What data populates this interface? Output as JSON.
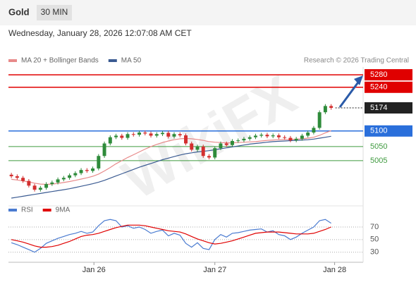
{
  "chart_data": {
    "type": "candlestick",
    "title": "Gold",
    "subtitle": "30 MIN",
    "date": "Wednesday, January 28, 2026 12:07:08 AM CET",
    "credit": "Research © 2026 Trading Central",
    "watermark": "WikiFX",
    "xlim": [
      -0.5,
      60.5
    ],
    "xticks": [
      {
        "value": 14.2,
        "label": "Jan 26"
      },
      {
        "value": 35,
        "label": "Jan 27"
      },
      {
        "value": 55.6,
        "label": "Jan 28"
      }
    ],
    "ylim": [
      4876,
      5305
    ],
    "up_color": "#2e8b3a",
    "down_color": "#d32f2f",
    "open": [
      4960,
      4955,
      4950,
      4940,
      4925,
      4912,
      4918,
      4930,
      4935,
      4945,
      4950,
      4958,
      4965,
      4975,
      4972,
      4980,
      5020,
      5060,
      5080,
      5085,
      5078,
      5090,
      5088,
      5095,
      5092,
      5085,
      5090,
      5094,
      5082,
      5090,
      5086,
      5060,
      5040,
      5050,
      5020,
      5015,
      5045,
      5060,
      5055,
      5068,
      5070,
      5075,
      5080,
      5085,
      5088,
      5083,
      5086,
      5080,
      5078,
      5070,
      5075,
      5085,
      5095,
      5110,
      5160,
      5180
    ],
    "high": [
      4966,
      4961,
      4956,
      4946,
      4931,
      4924,
      4936,
      4941,
      4951,
      4956,
      4964,
      4971,
      4981,
      4981,
      4986,
      5026,
      5066,
      5086,
      5091,
      5091,
      5096,
      5096,
      5101,
      5101,
      5098,
      5096,
      5100,
      5100,
      5096,
      5096,
      5092,
      5066,
      5056,
      5056,
      5026,
      5051,
      5066,
      5066,
      5074,
      5076,
      5081,
      5086,
      5091,
      5094,
      5094,
      5092,
      5092,
      5086,
      5084,
      5081,
      5091,
      5101,
      5116,
      5166,
      5186,
      5186
    ],
    "low": [
      4949,
      4944,
      4934,
      4919,
      4906,
      4906,
      4912,
      4924,
      4929,
      4939,
      4944,
      4952,
      4959,
      4966,
      4966,
      4974,
      5014,
      5054,
      5074,
      5072,
      5072,
      5082,
      5082,
      5086,
      5079,
      5079,
      5084,
      5076,
      5076,
      5080,
      5054,
      5034,
      5034,
      5014,
      5009,
      5009,
      5039,
      5049,
      5049,
      5062,
      5064,
      5069,
      5074,
      5079,
      5077,
      5077,
      5074,
      5072,
      5064,
      5064,
      5069,
      5079,
      5089,
      5104,
      5154,
      5168
    ],
    "close": [
      4955,
      4950,
      4940,
      4925,
      4912,
      4918,
      4930,
      4935,
      4945,
      4950,
      4958,
      4965,
      4975,
      4972,
      4980,
      5020,
      5060,
      5080,
      5085,
      5078,
      5090,
      5088,
      5095,
      5092,
      5085,
      5090,
      5094,
      5082,
      5090,
      5086,
      5060,
      5040,
      5050,
      5020,
      5015,
      5045,
      5060,
      5055,
      5068,
      5070,
      5075,
      5080,
      5085,
      5088,
      5083,
      5086,
      5080,
      5078,
      5070,
      5075,
      5085,
      5095,
      5110,
      5160,
      5180,
      5174
    ],
    "series": [
      {
        "name": "MA 20 + Bollinger Bands",
        "color": "#e88a8a",
        "values": [
          4945,
          4943,
          4940,
          4937,
          4933,
          4930,
          4929,
          4930,
          4932,
          4935,
          4938,
          4942,
          4946,
          4950,
          4955,
          4962,
          4972,
          4983,
          4995,
          5005,
          5015,
          5024,
          5033,
          5042,
          5050,
          5057,
          5063,
          5068,
          5072,
          5075,
          5076,
          5075,
          5073,
          5070,
          5066,
          5064,
          5063,
          5062,
          5062,
          5063,
          5064,
          5065,
          5066,
          5068,
          5070,
          5071,
          5072,
          5073,
          5073,
          5074,
          5075,
          5077,
          5080,
          5086,
          5094,
          5101
        ]
      },
      {
        "name": "MA 50",
        "color": "#3b5b92",
        "values": [
          4885,
          4888,
          4891,
          4894,
          4897,
          4900,
          4903,
          4906,
          4909,
          4912,
          4915,
          4919,
          4923,
          4927,
          4931,
          4936,
          4942,
          4949,
          4956,
          4963,
          4970,
          4977,
          4984,
          4990,
          4996,
          5002,
          5008,
          5013,
          5018,
          5023,
          5027,
          5030,
          5033,
          5035,
          5037,
          5040,
          5043,
          5046,
          5049,
          5052,
          5055,
          5058,
          5060,
          5062,
          5064,
          5066,
          5067,
          5068,
          5069,
          5070,
          5071,
          5072,
          5074,
          5077,
          5080,
          5083
        ]
      }
    ],
    "levels": [
      {
        "value": 5280,
        "color": "#e00000",
        "box": true
      },
      {
        "value": 5240,
        "color": "#e00000",
        "box": true
      },
      {
        "value": 5174,
        "color": "#222222",
        "box": true,
        "dotted": true
      },
      {
        "value": 5100,
        "color": "#2a6fdb",
        "box": true
      },
      {
        "value": 5050,
        "color": "#3f9a3f",
        "box": false
      },
      {
        "value": 5005,
        "color": "#3f9a3f",
        "box": false
      }
    ],
    "rsi": {
      "ylim": [
        14,
        89
      ],
      "yticks": [
        30,
        50,
        70
      ],
      "series": [
        {
          "name": "RSI",
          "color": "#4a7bd0",
          "values": [
            45,
            42,
            38,
            34,
            30,
            36,
            44,
            48,
            52,
            55,
            58,
            60,
            63,
            60,
            62,
            72,
            80,
            82,
            80,
            70,
            72,
            68,
            70,
            66,
            60,
            63,
            65,
            56,
            60,
            57,
            44,
            38,
            45,
            36,
            34,
            50,
            58,
            54,
            60,
            61,
            63,
            65,
            66,
            67,
            62,
            64,
            58,
            56,
            50,
            54,
            60,
            65,
            70,
            80,
            82,
            76
          ]
        },
        {
          "name": "9MA",
          "color": "#e00000",
          "values": [
            50,
            48,
            46,
            43,
            40,
            38,
            38,
            39,
            41,
            44,
            47,
            51,
            55,
            57,
            58,
            60,
            63,
            66,
            69,
            71,
            73,
            73,
            73,
            72,
            70,
            68,
            66,
            64,
            63,
            62,
            59,
            55,
            51,
            48,
            45,
            43,
            44,
            46,
            48,
            51,
            54,
            57,
            60,
            61,
            62,
            62,
            62,
            61,
            60,
            59,
            59,
            59,
            60,
            63,
            66,
            70
          ]
        }
      ]
    }
  }
}
